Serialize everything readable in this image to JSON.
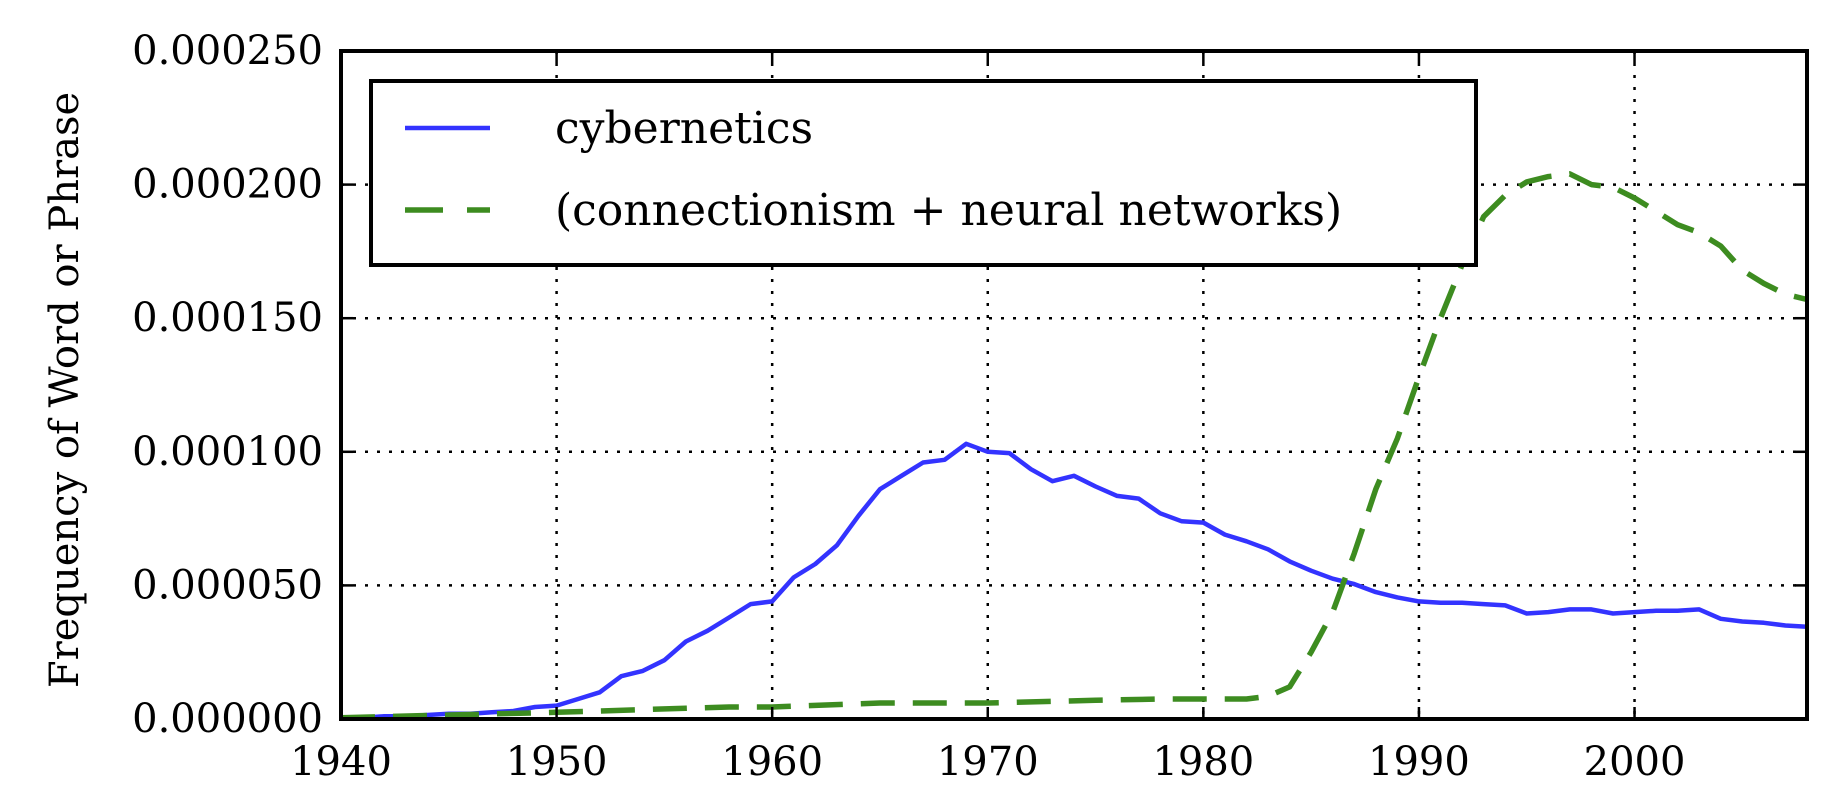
{
  "chart_data": {
    "type": "line",
    "title": "",
    "xlabel": "",
    "ylabel": "Frequency of Word or Phrase",
    "xlim": [
      1940,
      2008
    ],
    "ylim": [
      0,
      0.00025
    ],
    "x_ticks": [
      1940,
      1950,
      1960,
      1970,
      1980,
      1990,
      2000
    ],
    "x_tick_labels": [
      "1940",
      "1950",
      "1960",
      "1970",
      "1980",
      "1990",
      "2000"
    ],
    "y_ticks": [
      0,
      5e-05,
      0.0001,
      0.00015,
      0.0002,
      0.00025
    ],
    "y_tick_labels": [
      "0.000000",
      "0.000050",
      "0.000100",
      "0.000150",
      "0.000200",
      "0.000250"
    ],
    "grid": true,
    "legend_position": "top-left",
    "series": [
      {
        "name": "cybernetics",
        "color": "#3333ff",
        "style": "solid",
        "x": [
          1940,
          1941,
          1942,
          1943,
          1944,
          1945,
          1946,
          1947,
          1948,
          1949,
          1950,
          1951,
          1952,
          1953,
          1954,
          1955,
          1956,
          1957,
          1958,
          1959,
          1960,
          1961,
          1962,
          1963,
          1964,
          1965,
          1966,
          1967,
          1968,
          1969,
          1970,
          1971,
          1972,
          1973,
          1974,
          1975,
          1976,
          1977,
          1978,
          1979,
          1980,
          1981,
          1982,
          1983,
          1984,
          1985,
          1986,
          1987,
          1988,
          1989,
          1990,
          1991,
          1992,
          1993,
          1994,
          1995,
          1996,
          1997,
          1998,
          1999,
          2000,
          2001,
          2002,
          2003,
          2004,
          2005,
          2006,
          2007,
          2008
        ],
        "y": [
          5e-07,
          5e-07,
          1e-06,
          1e-06,
          1.5e-06,
          2e-06,
          2e-06,
          2.5e-06,
          3e-06,
          4.5e-06,
          5e-06,
          7.5e-06,
          1e-05,
          1.6e-05,
          1.8e-05,
          2.2e-05,
          2.9e-05,
          3.3e-05,
          3.8e-05,
          4.3e-05,
          4.4e-05,
          5.3e-05,
          5.8e-05,
          6.5e-05,
          7.6e-05,
          8.6e-05,
          9.1e-05,
          9.6e-05,
          9.7e-05,
          0.000103,
          0.0001,
          9.95e-05,
          9.35e-05,
          8.9e-05,
          9.1e-05,
          8.7e-05,
          8.35e-05,
          8.25e-05,
          7.7e-05,
          7.4e-05,
          7.35e-05,
          6.9e-05,
          6.65e-05,
          6.35e-05,
          5.9e-05,
          5.55e-05,
          5.25e-05,
          5.05e-05,
          4.75e-05,
          4.55e-05,
          4.4e-05,
          4.35e-05,
          4.35e-05,
          4.3e-05,
          4.25e-05,
          3.95e-05,
          4e-05,
          4.1e-05,
          4.1e-05,
          3.95e-05,
          4e-05,
          4.05e-05,
          4.05e-05,
          4.1e-05,
          3.75e-05,
          3.65e-05,
          3.6e-05,
          3.5e-05,
          3.45e-05
        ]
      },
      {
        "name": "(connectionism + neural networks)",
        "color": "#3d8c20",
        "style": "dashed",
        "x": [
          1940,
          1945,
          1950,
          1952,
          1954,
          1956,
          1958,
          1960,
          1965,
          1970,
          1975,
          1978,
          1982,
          1983,
          1984,
          1985,
          1986,
          1987,
          1988,
          1989,
          1990,
          1991,
          1992,
          1993,
          1994,
          1995,
          1996,
          1997,
          1998,
          1999,
          2000,
          2001,
          2002,
          2003,
          2004,
          2005,
          2006,
          2007,
          2008
        ],
        "y": [
          5e-07,
          1.5e-06,
          2.5e-06,
          3e-06,
          3.5e-06,
          4e-06,
          4.5e-06,
          4.5e-06,
          6e-06,
          6e-06,
          7e-06,
          7.5e-06,
          7.5e-06,
          8.5e-06,
          1.2e-05,
          2.5e-05,
          4e-05,
          6.2e-05,
          8.6e-05,
          0.000105,
          0.000128,
          0.00015,
          0.00017,
          0.000188,
          0.000196,
          0.000201,
          0.000203,
          0.000204,
          0.0002,
          0.000199,
          0.000195,
          0.00019,
          0.000185,
          0.000182,
          0.000177,
          0.000168,
          0.000163,
          0.000159,
          0.000157
        ]
      }
    ]
  }
}
